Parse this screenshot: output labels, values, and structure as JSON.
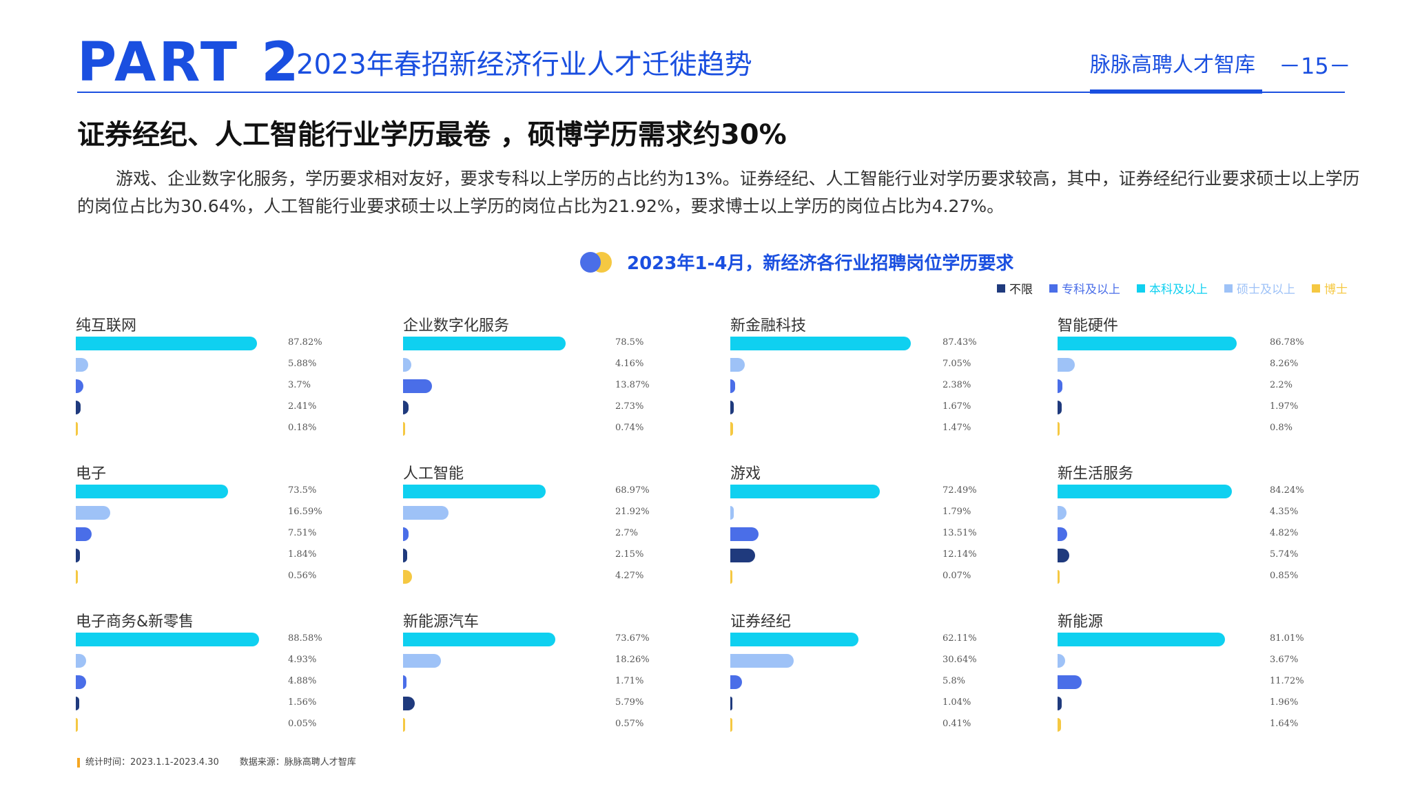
{
  "header": {
    "part_label": "PART 2",
    "title": "2023年春招新经济行业人才迁徙趋势",
    "brand": "脉脉高聘人才智库",
    "page": "－15－"
  },
  "headline": "证券经纪、人工智能行业学历最卷 ，硕博学历需求约30%",
  "intro": "游戏、企业数字化服务，学历要求相对友好，要求专科以上学历的占比约为13%。证券经纪、人工智能行业对学历要求较高，其中，证券经纪行业要求硕士以上学历的岗位占比为30.64%，人工智能行业要求硕士以上学历的岗位占比为21.92%，要求博士以上学历的岗位占比为4.27%。",
  "footnote": {
    "time": "统计时间：2023.1.1-2023.4.30",
    "source": "数据来源：脉脉高聘人才智库"
  },
  "colors": {
    "accent": "#1a4fe0",
    "不限": "#1f3a7d",
    "专科及以上": "#4a6ee8",
    "本科及以上": "#0fd0f0",
    "硕士及以上": "#9ec2f7",
    "博士": "#f5c842"
  },
  "chart_data": {
    "type": "bar",
    "title": "2023年1-4月，新经济各行业招聘岗位学历要求",
    "legend": [
      "不限",
      "专科及以上",
      "本科及以上",
      "硕士及以上",
      "博士"
    ],
    "legend_position": "top-right",
    "bar_order": [
      "本科及以上",
      "硕士及以上",
      "专科及以上",
      "不限",
      "博士"
    ],
    "max_value": 100,
    "panels": [
      {
        "name": "纯互联网",
        "values": [
          87.82,
          5.88,
          3.7,
          2.41,
          0.18
        ],
        "labels": [
          "87.82%",
          "5.88%",
          "3.7%",
          "2.41%",
          "0.18%"
        ]
      },
      {
        "name": "企业数字化服务",
        "values": [
          78.5,
          4.16,
          13.87,
          2.73,
          0.74
        ],
        "labels": [
          "78.5%",
          "4.16%",
          "13.87%",
          "2.73%",
          "0.74%"
        ]
      },
      {
        "name": "新金融科技",
        "values": [
          87.43,
          7.05,
          2.38,
          1.67,
          1.47
        ],
        "labels": [
          "87.43%",
          "7.05%",
          "2.38%",
          "1.67%",
          "1.47%"
        ]
      },
      {
        "name": "智能硬件",
        "values": [
          86.78,
          8.26,
          2.2,
          1.97,
          0.8
        ],
        "labels": [
          "86.78%",
          "8.26%",
          "2.2%",
          "1.97%",
          "0.8%"
        ]
      },
      {
        "name": "电子",
        "values": [
          73.5,
          16.59,
          7.51,
          1.84,
          0.56
        ],
        "labels": [
          "73.5%",
          "16.59%",
          "7.51%",
          "1.84%",
          "0.56%"
        ]
      },
      {
        "name": "人工智能",
        "values": [
          68.97,
          21.92,
          2.7,
          2.15,
          4.27
        ],
        "labels": [
          "68.97%",
          "21.92%",
          "2.7%",
          "2.15%",
          "4.27%"
        ]
      },
      {
        "name": "游戏",
        "values": [
          72.49,
          1.79,
          13.51,
          12.14,
          0.07
        ],
        "labels": [
          "72.49%",
          "1.79%",
          "13.51%",
          "12.14%",
          "0.07%"
        ]
      },
      {
        "name": "新生活服务",
        "values": [
          84.24,
          4.35,
          4.82,
          5.74,
          0.85
        ],
        "labels": [
          "84.24%",
          "4.35%",
          "4.82%",
          "5.74%",
          "0.85%"
        ]
      },
      {
        "name": "电子商务&新零售",
        "values": [
          88.58,
          4.93,
          4.88,
          1.56,
          0.05
        ],
        "labels": [
          "88.58%",
          "4.93%",
          "4.88%",
          "1.56%",
          "0.05%"
        ]
      },
      {
        "name": "新能源汽车",
        "values": [
          73.67,
          18.26,
          1.71,
          5.79,
          0.57
        ],
        "labels": [
          "73.67%",
          "18.26%",
          "1.71%",
          "5.79%",
          "0.57%"
        ]
      },
      {
        "name": "证券经纪",
        "values": [
          62.11,
          30.64,
          5.8,
          1.04,
          0.41
        ],
        "labels": [
          "62.11%",
          "30.64%",
          "5.8%",
          "1.04%",
          "0.41%"
        ]
      },
      {
        "name": "新能源",
        "values": [
          81.01,
          3.67,
          11.72,
          1.96,
          1.64
        ],
        "labels": [
          "81.01%",
          "3.67%",
          "11.72%",
          "1.96%",
          "1.64%"
        ]
      }
    ]
  }
}
